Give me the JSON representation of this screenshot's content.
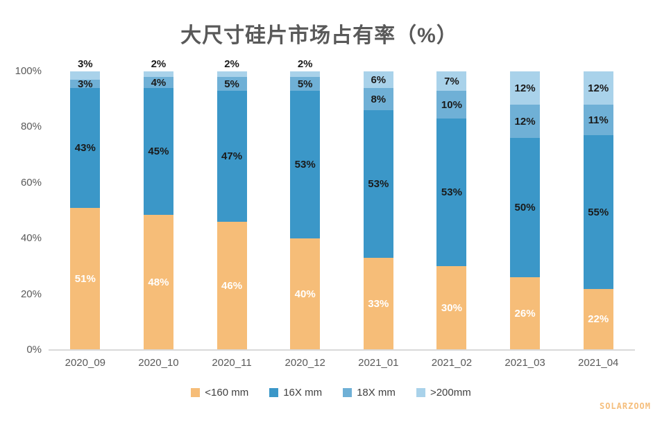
{
  "chart_data": {
    "type": "bar",
    "subtype": "stacked-100",
    "title": "大尺寸硅片市场占有率（%）",
    "categories": [
      "2020_09",
      "2020_10",
      "2020_11",
      "2020_12",
      "2021_01",
      "2021_02",
      "2021_03",
      "2021_04"
    ],
    "series": [
      {
        "name": "<160 mm",
        "color": "#F6BD78",
        "label_color": "#FFFFFF",
        "values": [
          51,
          48,
          46,
          40,
          33,
          30,
          26,
          22
        ]
      },
      {
        "name": "16X mm",
        "color": "#3B97C8",
        "label_color": "#1A1A1A",
        "values": [
          43,
          45,
          47,
          53,
          53,
          53,
          50,
          55
        ]
      },
      {
        "name": "18X mm",
        "color": "#6FB0D6",
        "label_color": "#1A1A1A",
        "values": [
          3,
          4,
          5,
          5,
          8,
          10,
          12,
          11
        ]
      },
      {
        "name": ">200mm",
        "color": "#A9D2EA",
        "label_color": "#1A1A1A",
        "values": [
          3,
          2,
          2,
          2,
          6,
          7,
          12,
          12
        ]
      }
    ],
    "value_suffix": "%",
    "yticks": [
      "0%",
      "20%",
      "40%",
      "60%",
      "80%",
      "100%"
    ],
    "ytick_values": [
      0,
      20,
      40,
      60,
      80,
      100
    ],
    "ylim": [
      0,
      100
    ],
    "grid": false,
    "legend_position": "bottom",
    "xlabel": "",
    "ylabel": ""
  },
  "watermark": "SOLARZOOM",
  "colors": {
    "title": "#595959",
    "axis_line": "#D9D9D9",
    "tick_label": "#595959"
  }
}
